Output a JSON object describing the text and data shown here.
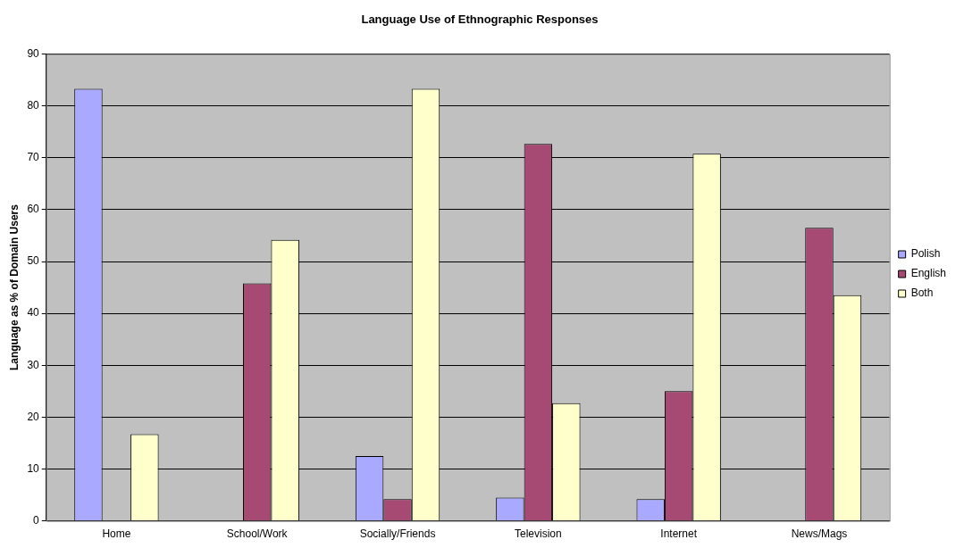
{
  "chart_data": {
    "type": "bar",
    "title": "Language Use of Ethnographic Responses",
    "ylabel": "Language as % of Domain Users",
    "categories": [
      "Home",
      "School/Work",
      "Socially/Friends",
      "Television",
      "Internet",
      "News/Mags"
    ],
    "series": [
      {
        "name": "Polish",
        "color": "#a9a9ff",
        "values": [
          83.3,
          0,
          12.5,
          4.5,
          4.2,
          0
        ]
      },
      {
        "name": "English",
        "color": "#a64a73",
        "values": [
          0,
          45.8,
          4.2,
          72.7,
          25,
          56.5
        ]
      },
      {
        "name": "Both",
        "color": "#ffffcc",
        "values": [
          16.7,
          54.2,
          83.3,
          22.7,
          70.8,
          43.5
        ]
      }
    ],
    "ylim": [
      0,
      90
    ],
    "yticks": [
      0,
      10,
      20,
      30,
      40,
      50,
      60,
      70,
      80,
      90
    ],
    "grid": "y",
    "legend": "right"
  }
}
